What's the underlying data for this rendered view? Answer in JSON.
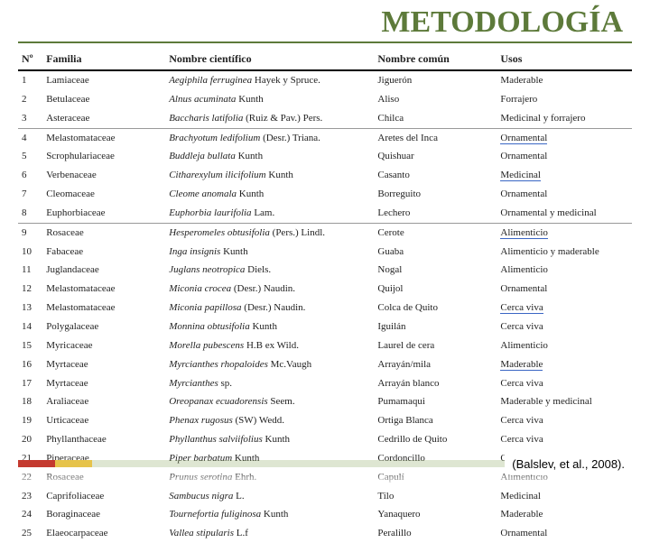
{
  "title": "METODOLOGÍA",
  "citation": "(Balslev, et al., 2008).",
  "columns": [
    "Nº",
    "Familia",
    "Nombre científico",
    "Nombre común",
    "Usos"
  ],
  "rows": [
    {
      "n": "1",
      "fam": "Lamiaceae",
      "sci_i": "Aegiphila ferruginea",
      "sci_r": " Hayek y Spruce.",
      "com": "Jiguerón",
      "uso": "Maderable"
    },
    {
      "n": "2",
      "fam": "Betulaceae",
      "sci_i": "Alnus acuminata",
      "sci_r": " Kunth",
      "com": "Aliso",
      "uso": "Forrajero"
    },
    {
      "n": "3",
      "fam": "Asteraceae",
      "sci_i": "Baccharis latifolia",
      "sci_r": " (Ruiz & Pav.) Pers.",
      "com": "Chilca",
      "uso": "Medicinal y forrajero",
      "sep": true
    },
    {
      "n": "4",
      "fam": "Melastomataceae",
      "sci_i": "Brachyotum ledifolium",
      "sci_r": " (Desr.) Triana.",
      "com": "Aretes del Inca",
      "uso": "Ornamental",
      "uso_u": true
    },
    {
      "n": "5",
      "fam": "Scrophulariaceae",
      "sci_i": "Buddleja bullata",
      "sci_r": " Kunth",
      "com": "Quishuar",
      "uso": "Ornamental"
    },
    {
      "n": "6",
      "fam": "Verbenaceae",
      "sci_i": "Citharexylum ilicifolium",
      "sci_r": " Kunth",
      "com": "Casanto",
      "uso": "Medicinal",
      "uso_u": true
    },
    {
      "n": "7",
      "fam": "Cleomaceae",
      "sci_i": "Cleome anomala",
      "sci_r": " Kunth",
      "com": "Borreguito",
      "uso": "Ornamental"
    },
    {
      "n": "8",
      "fam": "Euphorbiaceae",
      "sci_i": "Euphorbia laurifolia",
      "sci_r": " Lam.",
      "com": "Lechero",
      "uso": "Ornamental y medicinal",
      "sep": true
    },
    {
      "n": "9",
      "fam": "Rosaceae",
      "sci_i": "Hesperomeles obtusifolia",
      "sci_r": " (Pers.) Lindl.",
      "com": "Cerote",
      "uso": "Alimenticio",
      "uso_u": true
    },
    {
      "n": "10",
      "fam": "Fabaceae",
      "sci_i": "Inga insignis",
      "sci_r": " Kunth",
      "com": "Guaba",
      "uso": "Alimenticio y maderable"
    },
    {
      "n": "11",
      "fam": "Juglandaceae",
      "sci_i": "Juglans neotropica",
      "sci_r": " Diels.",
      "com": "Nogal",
      "uso": "Alimenticio"
    },
    {
      "n": "12",
      "fam": "Melastomataceae",
      "sci_i": "Miconia crocea",
      "sci_r": " (Desr.) Naudin.",
      "com": "Quijol",
      "uso": "Ornamental"
    },
    {
      "n": "13",
      "fam": "Melastomataceae",
      "sci_i": "Miconia papillosa",
      "sci_r": " (Desr.) Naudin.",
      "com": "Colca de Quito",
      "uso": "Cerca viva",
      "uso_u": true
    },
    {
      "n": "14",
      "fam": "Polygalaceae",
      "sci_i": "Monnina obtusifolia",
      "sci_r": " Kunth",
      "com": "Iguilán",
      "uso": "Cerca viva"
    },
    {
      "n": "15",
      "fam": "Myricaceae",
      "sci_i": "Morella pubescens",
      "sci_r": " H.B ex Wild.",
      "com": "Laurel de cera",
      "uso": "Alimenticio"
    },
    {
      "n": "16",
      "fam": "Myrtaceae",
      "sci_i": "Myrcianthes rhopaloides",
      "sci_r": " Mc.Vaugh",
      "com": "Arrayán/mila",
      "uso": "Maderable",
      "uso_u": true
    },
    {
      "n": "17",
      "fam": "Myrtaceae",
      "sci_i": "Myrcianthes",
      "sci_r": " sp.",
      "com": "Arrayán blanco",
      "uso": "Cerca viva"
    },
    {
      "n": "18",
      "fam": "Araliaceae",
      "sci_i": "Oreopanax ecuadorensis",
      "sci_r": " Seem.",
      "com": "Pumamaqui",
      "uso": "Maderable y medicinal"
    },
    {
      "n": "19",
      "fam": "Urticaceae",
      "sci_i": "Phenax rugosus",
      "sci_r": " (SW) Wedd.",
      "com": "Ortiga Blanca",
      "uso": "Cerca viva"
    },
    {
      "n": "20",
      "fam": "Phyllanthaceae",
      "sci_i": "Phyllanthus salviifolius",
      "sci_r": " Kunth",
      "com": "Cedrillo de Quito",
      "uso": "Cerca viva"
    },
    {
      "n": "21",
      "fam": "Piperaceae",
      "sci_i": "Piper barbatum",
      "sci_r": " Kunth",
      "com": "Cordoncillo",
      "uso": "Ornamental"
    },
    {
      "n": "22",
      "fam": "Rosaceae",
      "sci_i": "Prunus serotina",
      "sci_r": " Ehrh.",
      "com": "Capulí",
      "uso": "Alimenticio"
    },
    {
      "n": "23",
      "fam": "Caprifoliaceae",
      "sci_i": "Sambucus nigra",
      "sci_r": " L.",
      "com": "Tilo",
      "uso": "Medicinal"
    },
    {
      "n": "24",
      "fam": "Boraginaceae",
      "sci_i": "Tournefortia fuliginosa",
      "sci_r": " Kunth",
      "com": "Yanaquero",
      "uso": "Maderable"
    },
    {
      "n": "25",
      "fam": "Elaeocarpaceae",
      "sci_i": "Vallea stipularis",
      "sci_r": " L.f",
      "com": "Peralillo",
      "uso": "Ornamental"
    }
  ]
}
